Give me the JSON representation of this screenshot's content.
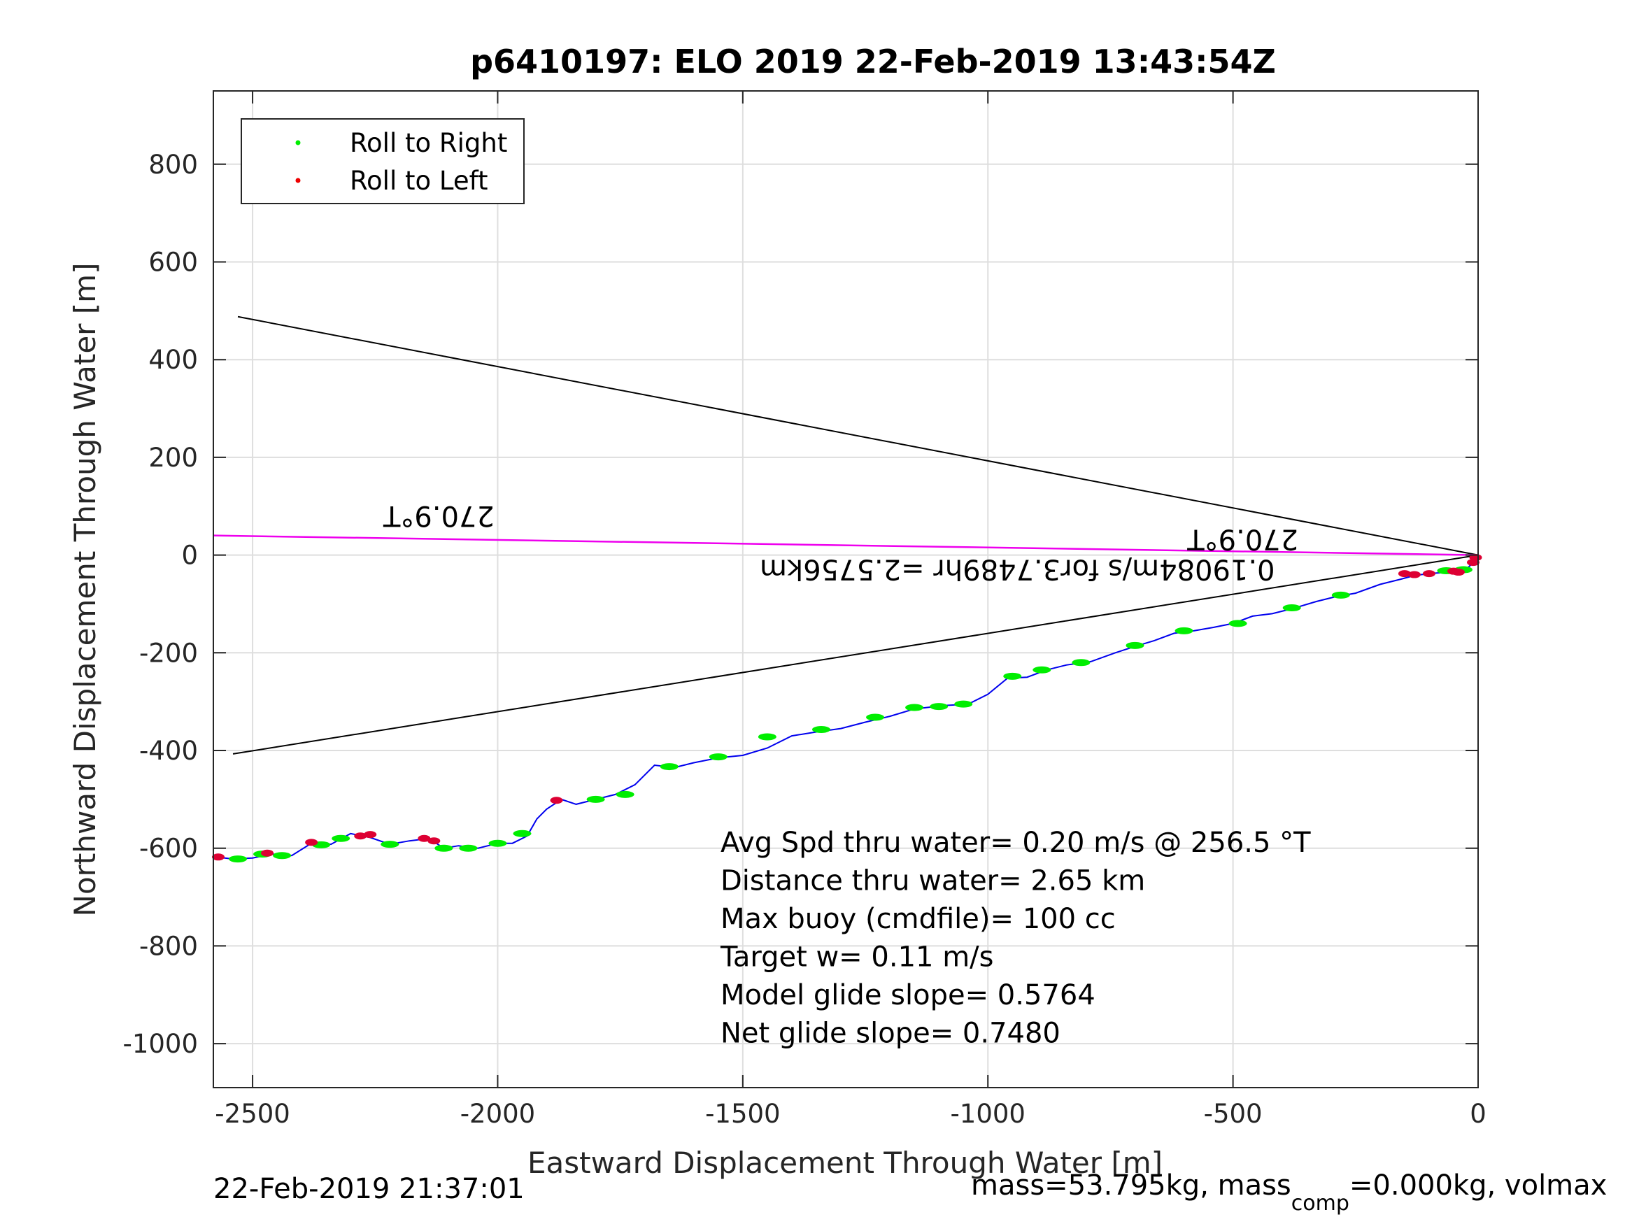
{
  "chart_data": {
    "type": "line",
    "title": "p6410197: ELO 2019 22-Feb-2019 13:43:54Z",
    "xlabel": "Eastward Displacement Through Water [m]",
    "ylabel": "Northward Displacement Through Water [m]",
    "xlim": [
      -2580,
      0
    ],
    "ylim": [
      -1090,
      950
    ],
    "xticks": [
      -2500,
      -2000,
      -1500,
      -1000,
      -500,
      0
    ],
    "yticks": [
      800,
      600,
      400,
      200,
      0,
      -200,
      -400,
      -600,
      -800,
      -1000
    ],
    "xtick_labels": [
      "-2500",
      "-2000",
      "-1500",
      "-1000",
      "-500",
      "0"
    ],
    "ytick_labels": [
      "800",
      "600",
      "400",
      "200",
      "0",
      "-200",
      "-400",
      "-600",
      "-800",
      "-1000"
    ],
    "grid": true,
    "legend": {
      "placement": "top-left",
      "entries": [
        {
          "label": "Roll to Right",
          "color": "#00ee00"
        },
        {
          "label": "Roll to Left",
          "color": "#ee0000"
        }
      ]
    },
    "colors": {
      "track": "#0000ee",
      "reference_lines": "#000000",
      "heading_line": "#ee00ee",
      "roll_right": "#00ee00",
      "roll_left": "#dd0033"
    },
    "track": {
      "x": [
        0,
        -8,
        -15,
        -25,
        -40,
        -55,
        -75,
        -100,
        -130,
        -160,
        -200,
        -250,
        -290,
        -330,
        -380,
        -420,
        -460,
        -500,
        -540,
        -580,
        -620,
        -660,
        -700,
        -740,
        -790,
        -840,
        -880,
        -920,
        -960,
        -1000,
        -1040,
        -1090,
        -1150,
        -1200,
        -1250,
        -1300,
        -1350,
        -1400,
        -1450,
        -1500,
        -1550,
        -1600,
        -1640,
        -1680,
        -1720,
        -1760,
        -1800,
        -1840,
        -1870,
        -1900,
        -1920,
        -1940,
        -1970,
        -2000,
        -2040,
        -2080,
        -2110,
        -2140,
        -2180,
        -2220,
        -2260,
        -2300,
        -2340,
        -2380,
        -2420,
        -2460,
        -2500,
        -2540,
        -2575
      ],
      "y": [
        0,
        -10,
        -20,
        -30,
        -35,
        -30,
        -36,
        -38,
        -42,
        -50,
        -60,
        -78,
        -85,
        -95,
        -110,
        -120,
        -125,
        -140,
        -148,
        -155,
        -160,
        -175,
        -187,
        -200,
        -218,
        -225,
        -235,
        -250,
        -252,
        -285,
        -305,
        -308,
        -315,
        -330,
        -342,
        -355,
        -362,
        -370,
        -395,
        -410,
        -415,
        -425,
        -435,
        -430,
        -470,
        -490,
        -500,
        -510,
        -500,
        -520,
        -540,
        -575,
        -590,
        -590,
        -600,
        -595,
        -600,
        -580,
        -585,
        -592,
        -578,
        -570,
        -592,
        -590,
        -615,
        -612,
        -620,
        -622,
        -618
      ]
    },
    "roll_right_points": [
      {
        "x": -30,
        "y": -30
      },
      {
        "x": -65,
        "y": -32
      },
      {
        "x": -280,
        "y": -82
      },
      {
        "x": -380,
        "y": -108
      },
      {
        "x": -490,
        "y": -140
      },
      {
        "x": -600,
        "y": -155
      },
      {
        "x": -700,
        "y": -185
      },
      {
        "x": -810,
        "y": -220
      },
      {
        "x": -890,
        "y": -235
      },
      {
        "x": -950,
        "y": -248
      },
      {
        "x": -1050,
        "y": -305
      },
      {
        "x": -1100,
        "y": -310
      },
      {
        "x": -1150,
        "y": -312
      },
      {
        "x": -1230,
        "y": -332
      },
      {
        "x": -1340,
        "y": -357
      },
      {
        "x": -1450,
        "y": -372
      },
      {
        "x": -1550,
        "y": -413
      },
      {
        "x": -1650,
        "y": -433
      },
      {
        "x": -1740,
        "y": -490
      },
      {
        "x": -1800,
        "y": -500
      },
      {
        "x": -1950,
        "y": -570
      },
      {
        "x": -2000,
        "y": -590
      },
      {
        "x": -2060,
        "y": -600
      },
      {
        "x": -2110,
        "y": -600
      },
      {
        "x": -2220,
        "y": -592
      },
      {
        "x": -2320,
        "y": -580
      },
      {
        "x": -2360,
        "y": -593
      },
      {
        "x": -2440,
        "y": -615
      },
      {
        "x": -2480,
        "y": -612
      },
      {
        "x": -2530,
        "y": -622
      }
    ],
    "roll_left_points": [
      {
        "x": -5,
        "y": -5
      },
      {
        "x": -10,
        "y": -15
      },
      {
        "x": -40,
        "y": -35
      },
      {
        "x": -50,
        "y": -33
      },
      {
        "x": -100,
        "y": -38
      },
      {
        "x": -130,
        "y": -40
      },
      {
        "x": -150,
        "y": -38
      },
      {
        "x": -1880,
        "y": -502
      },
      {
        "x": -2130,
        "y": -585
      },
      {
        "x": -2150,
        "y": -580
      },
      {
        "x": -2260,
        "y": -572
      },
      {
        "x": -2280,
        "y": -575
      },
      {
        "x": -2380,
        "y": -588
      },
      {
        "x": -2470,
        "y": -610
      },
      {
        "x": -2570,
        "y": -618
      }
    ],
    "reference_lines": [
      {
        "name": "upper",
        "x": [
          0,
          -2530
        ],
        "y": [
          0,
          488
        ]
      },
      {
        "name": "lower",
        "x": [
          0,
          -2540
        ],
        "y": [
          0,
          -407
        ]
      }
    ],
    "heading_line": {
      "x": [
        0,
        -2580
      ],
      "y": [
        0,
        40
      ]
    },
    "annotations": [
      {
        "text": "270.9°T",
        "x": -2120,
        "y": 100,
        "rotation": 180
      },
      {
        "text": "270.9°T",
        "x": -480,
        "y": 52,
        "rotation": 180
      },
      {
        "text": "0.19084m/s for3.7489hr =2.5756km",
        "x": -940,
        "y": -10,
        "rotation": 180
      }
    ],
    "stats": [
      "Avg Spd thru water=  0.20 m/s @ 256.5 °T",
      "Distance thru water=  2.65 km",
      "Max buoy (cmdfile)= 100 cc",
      "Target w= 0.11 m/s",
      "Model glide slope= 0.5764",
      "Net glide slope= 0.7480"
    ]
  },
  "footer": {
    "timestamp": "22-Feb-2019 21:37:01",
    "mass_text_1": "mass=53.795kg, mass",
    "mass_sub": "comp",
    "mass_text_2": "=0.000kg, volmax"
  }
}
